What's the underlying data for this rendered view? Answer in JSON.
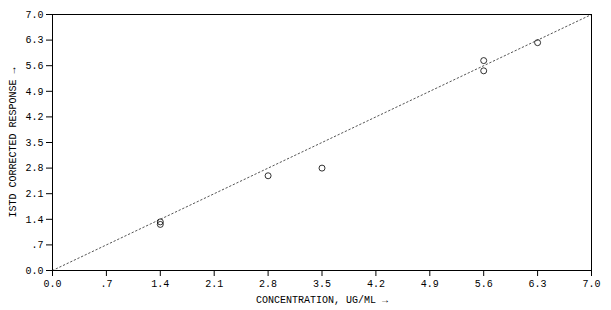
{
  "chart_data": {
    "type": "scatter",
    "xlabel": "CONCENTRATION, UG/ML",
    "ylabel": "ISTD CORRECTED RESPONSE",
    "xlim": [
      0.0,
      7.0
    ],
    "ylim": [
      0.0,
      7.0
    ],
    "xticks": [
      {
        "value": 0.0,
        "label": "0.0"
      },
      {
        "value": 0.7,
        "label": ".7"
      },
      1.4,
      2.1,
      2.8,
      3.5,
      4.2,
      4.9,
      5.6,
      6.3,
      {
        "value": 7.0,
        "label": "7.0"
      }
    ],
    "yticks": [
      {
        "value": 0.0,
        "label": "0.0"
      },
      {
        "value": 0.7,
        "label": ".7"
      },
      1.4,
      2.1,
      2.8,
      3.5,
      4.2,
      4.9,
      5.6,
      6.3,
      {
        "value": 7.0,
        "label": "7.0"
      }
    ],
    "grid": false,
    "series": [
      {
        "type": "line",
        "x": [
          0.0,
          7.0
        ],
        "values": [
          0.0,
          7.0
        ],
        "color": "#555555",
        "line_style": "dotted"
      },
      {
        "type": "scatter",
        "x": [
          1.4,
          1.4,
          2.8,
          3.5,
          5.6,
          5.6,
          6.3
        ],
        "values": [
          1.26,
          1.33,
          2.59,
          2.8,
          5.74,
          5.46,
          6.23
        ],
        "color": "#000000",
        "marker": "o"
      }
    ]
  }
}
